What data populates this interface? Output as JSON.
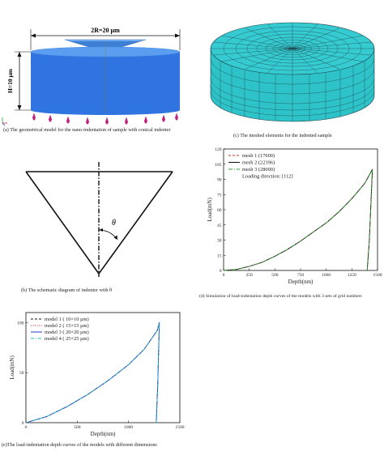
{
  "panel_a": {
    "dim_width": "2R=20 μm",
    "dim_height": "H=10 μm",
    "caption": "(a) The geometrical model for the nano-indentation of sample with conical indenter",
    "colors": {
      "cylinder_top": "#5b9ef0",
      "cylinder_side": "#2f74e0",
      "indenter": "#3e7fd6",
      "bc_dots": "#d21f86"
    }
  },
  "panel_c": {
    "caption": "(c) The meshed elements for the indented sample",
    "colors": {
      "mesh_fill": "#2ec3c8",
      "mesh_line": "#1b3d45"
    }
  },
  "panel_b": {
    "theta": "θ",
    "caption": "(b) The schematic diagram of indenter with θ"
  },
  "panel_d": {
    "caption": "(d) Simulation of load-indentation depth curves of the models with 3 sets of grid numbers",
    "legend_note": "Loading direction: [112]"
  },
  "panel_e": {
    "caption": "(e)The load-indentation depth curves of the models with different dimensions"
  },
  "chart_data": [
    {
      "id": "d",
      "type": "line",
      "xlabel": "Depth(nm)",
      "ylabel": "Load(mN)",
      "xlim": [
        0,
        1500
      ],
      "ylim": [
        0,
        120
      ],
      "xticks": [
        0,
        250,
        500,
        750,
        1000,
        1250,
        1500
      ],
      "yticks": [
        0,
        15,
        30,
        45,
        60,
        75,
        90,
        105,
        120
      ],
      "grid": false,
      "legend": "top-left",
      "series": [
        {
          "name": "mesh 1 (17600)",
          "color": "#d62728",
          "dash": "3,2",
          "x": [
            0,
            125,
            250,
            375,
            500,
            625,
            750,
            875,
            1000,
            1125,
            1250,
            1375,
            1440,
            1450,
            1420,
            1400
          ],
          "y": [
            0,
            1,
            4,
            8,
            14,
            21,
            29,
            38,
            47,
            58,
            71,
            86,
            98,
            100,
            30,
            0
          ]
        },
        {
          "name": "mesh 2 (22396)",
          "color": "#111111",
          "dash": "",
          "x": [
            0,
            125,
            250,
            375,
            500,
            625,
            750,
            875,
            1000,
            1125,
            1250,
            1375,
            1440,
            1450,
            1420,
            1400
          ],
          "y": [
            0,
            1,
            4,
            8,
            14,
            21,
            29,
            38,
            47,
            58,
            71,
            86,
            98,
            100,
            30,
            0
          ]
        },
        {
          "name": "mesh 3 (28000)",
          "color": "#2ca02c",
          "dash": "5,2,1,2",
          "x": [
            0,
            125,
            250,
            375,
            500,
            625,
            750,
            875,
            1000,
            1125,
            1250,
            1375,
            1440,
            1450,
            1420,
            1400
          ],
          "y": [
            0,
            1,
            4,
            8,
            14,
            21,
            29,
            38,
            47,
            58,
            71,
            86,
            98,
            100,
            30,
            0
          ]
        }
      ]
    },
    {
      "id": "e",
      "type": "line",
      "xlabel": "Depth(nm)",
      "ylabel": "Load(mN)",
      "xlim": [
        0,
        1500
      ],
      "ylim": [
        0,
        110
      ],
      "xticks": [
        0,
        500,
        1000,
        1500
      ],
      "yticks": [
        0,
        50,
        100
      ],
      "grid": false,
      "legend": "top-left",
      "series": [
        {
          "name": "model 1 ( 10×10 μm)",
          "color": "#111111",
          "dash": "3,2",
          "x": [
            0,
            200,
            400,
            600,
            800,
            1000,
            1150,
            1280,
            1300,
            1285,
            1270
          ],
          "y": [
            0,
            6,
            16,
            28,
            42,
            58,
            73,
            92,
            100,
            40,
            0
          ]
        },
        {
          "name": "model 2 ( 15×15 μm)",
          "color": "#d62728",
          "dash": "1,1.5",
          "x": [
            0,
            200,
            400,
            600,
            800,
            1000,
            1150,
            1280,
            1300,
            1285,
            1270
          ],
          "y": [
            0,
            6,
            16,
            28,
            42,
            58,
            73,
            92,
            100,
            40,
            0
          ]
        },
        {
          "name": "model 3 ( 20×20 μm)",
          "color": "#1f3fbf",
          "dash": "",
          "x": [
            0,
            200,
            400,
            600,
            800,
            1000,
            1150,
            1280,
            1300,
            1285,
            1270
          ],
          "y": [
            0,
            6,
            16,
            28,
            42,
            58,
            73,
            92,
            100,
            40,
            0
          ]
        },
        {
          "name": "model 4 ( 25×25 μm)",
          "color": "#17becf",
          "dash": "4,2,1,2",
          "x": [
            0,
            200,
            400,
            600,
            800,
            1000,
            1150,
            1280,
            1300,
            1285,
            1270
          ],
          "y": [
            0,
            6,
            16,
            28,
            42,
            58,
            73,
            92,
            100,
            40,
            0
          ]
        }
      ]
    }
  ]
}
